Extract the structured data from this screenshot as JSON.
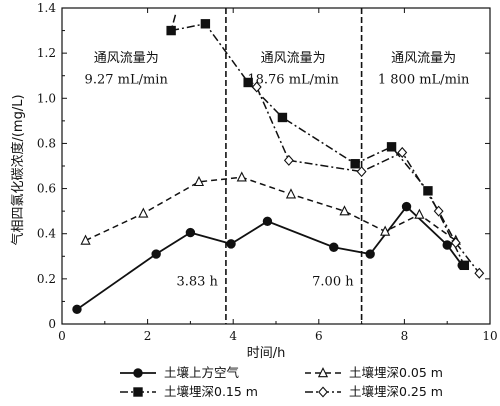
{
  "chart_data": {
    "type": "line",
    "xlabel": "时间/h",
    "ylabel": "气相四氯化碳浓度/(mg/L)",
    "xlim": [
      0,
      10
    ],
    "ylim": [
      0,
      1.4
    ],
    "xticks": [
      "0",
      "2",
      "4",
      "6",
      "8",
      "10"
    ],
    "yticks": [
      "0",
      "0.2",
      "0.4",
      "0.6",
      "0.8",
      "1.0",
      "1.2",
      "1.4"
    ],
    "grid": false,
    "legend_position": "bottom",
    "colors": {
      "line": "#111111",
      "background": "#ffffff"
    },
    "vlines": [
      {
        "x": 3.83,
        "label": "3.83 h"
      },
      {
        "x": 7.0,
        "label": "7.00 h"
      }
    ],
    "phases": [
      {
        "line1": "通风流量为",
        "line2": "9.27 mL/min"
      },
      {
        "line1": "通风流量为",
        "line2": "18.76 mL/min"
      },
      {
        "line1": "通风流量为",
        "line2": "1 800 mL/min"
      }
    ],
    "series": [
      {
        "name": "土壤上方空气",
        "marker": "circle-filled",
        "dash": "solid",
        "x": [
          0.35,
          2.2,
          3.0,
          3.95,
          4.8,
          6.35,
          7.2,
          8.05,
          9.0,
          9.35
        ],
        "y": [
          0.065,
          0.31,
          0.405,
          0.355,
          0.455,
          0.34,
          0.31,
          0.52,
          0.35,
          0.26
        ]
      },
      {
        "name": "土壤埋深0.15 m",
        "marker": "square-filled",
        "dash": "dashdot",
        "x": [
          2.55,
          3.35,
          4.35,
          5.15,
          6.85,
          7.7,
          8.55,
          9.4
        ],
        "y": [
          1.3,
          1.33,
          1.07,
          0.915,
          0.71,
          0.785,
          0.59,
          0.26
        ]
      },
      {
        "name": "土壤埋深0.05 m",
        "marker": "triangle-open",
        "dash": "dashed",
        "x": [
          0.55,
          1.9,
          3.2,
          4.2,
          5.35,
          6.6,
          7.55,
          8.35,
          9.2
        ],
        "y": [
          0.37,
          0.49,
          0.63,
          0.65,
          0.575,
          0.5,
          0.41,
          0.485,
          0.37
        ]
      },
      {
        "name": "土壤埋深0.25 m",
        "marker": "diamond-open",
        "dash": "dashdot",
        "x": [
          4.55,
          5.3,
          7.0,
          7.95,
          8.8,
          9.2,
          9.75
        ],
        "y": [
          1.05,
          0.725,
          0.675,
          0.76,
          0.5,
          0.36,
          0.225
        ]
      }
    ],
    "series0_prefix_segment": {
      "x": [
        2.65,
        2.55
      ],
      "y": [
        1.37,
        1.3
      ]
    }
  }
}
